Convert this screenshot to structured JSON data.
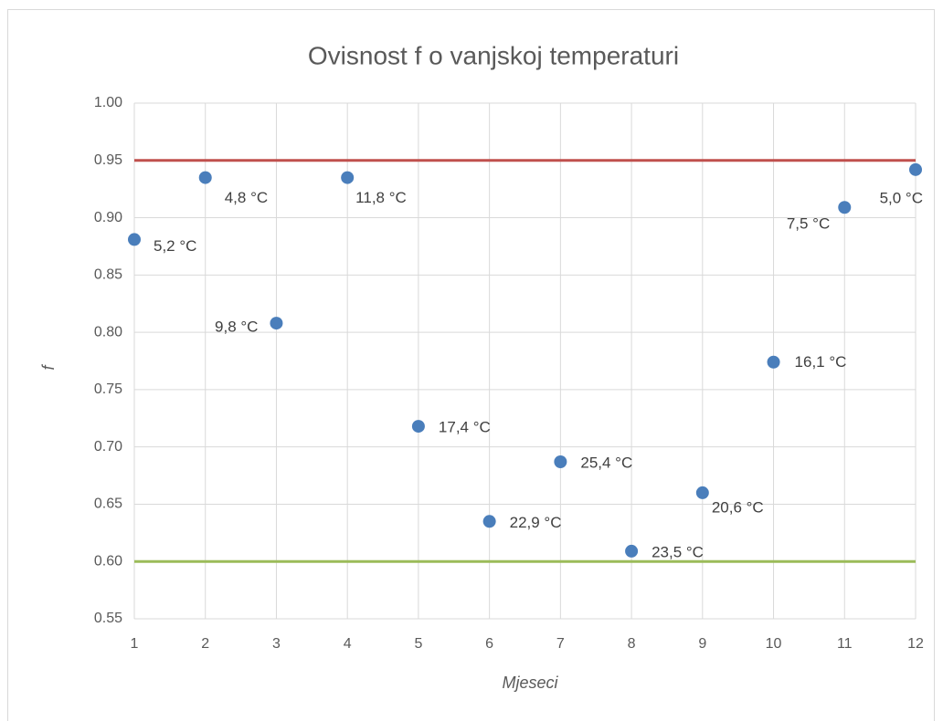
{
  "chart_data": {
    "type": "scatter",
    "title": "Ovisnost f o vanjskoj temperaturi",
    "x_label": "Mjeseci",
    "y_label": "f",
    "x": [
      1,
      2,
      3,
      4,
      5,
      6,
      7,
      8,
      9,
      10,
      11,
      12
    ],
    "values": [
      0.881,
      0.935,
      0.808,
      0.935,
      0.718,
      0.635,
      0.687,
      0.609,
      0.66,
      0.774,
      0.909,
      0.942
    ],
    "annotations": [
      "5,2 °C",
      "4,8 °C",
      "9,8 °C",
      "11,8 °C",
      "17,4 °C",
      "22,9 °C",
      "25,4 °C",
      "23,5 °C",
      "20,6 °C",
      "16,1 °C",
      "7,5 °C",
      "5,0 °C"
    ],
    "color": "#4a7ebb",
    "reference_lines": [
      {
        "value": 0.95,
        "color": "#c0504d"
      },
      {
        "value": 0.6,
        "color": "#9bbb59"
      }
    ],
    "xlim": [
      1,
      12
    ],
    "xticks": [
      1,
      2,
      3,
      4,
      5,
      6,
      7,
      8,
      9,
      10,
      11,
      12
    ],
    "ylim": [
      0.55,
      1
    ],
    "yticks": [
      0.55,
      {
        "value": 0.6,
        "label": "0.60"
      },
      0.65,
      {
        "value": 0.7,
        "label": "0.70"
      },
      0.75,
      {
        "value": 0.8,
        "label": "0.80"
      },
      0.85,
      {
        "value": 0.9,
        "label": "0.90"
      },
      0.95,
      {
        "value": 1,
        "label": "1.00"
      }
    ],
    "grid": true
  }
}
